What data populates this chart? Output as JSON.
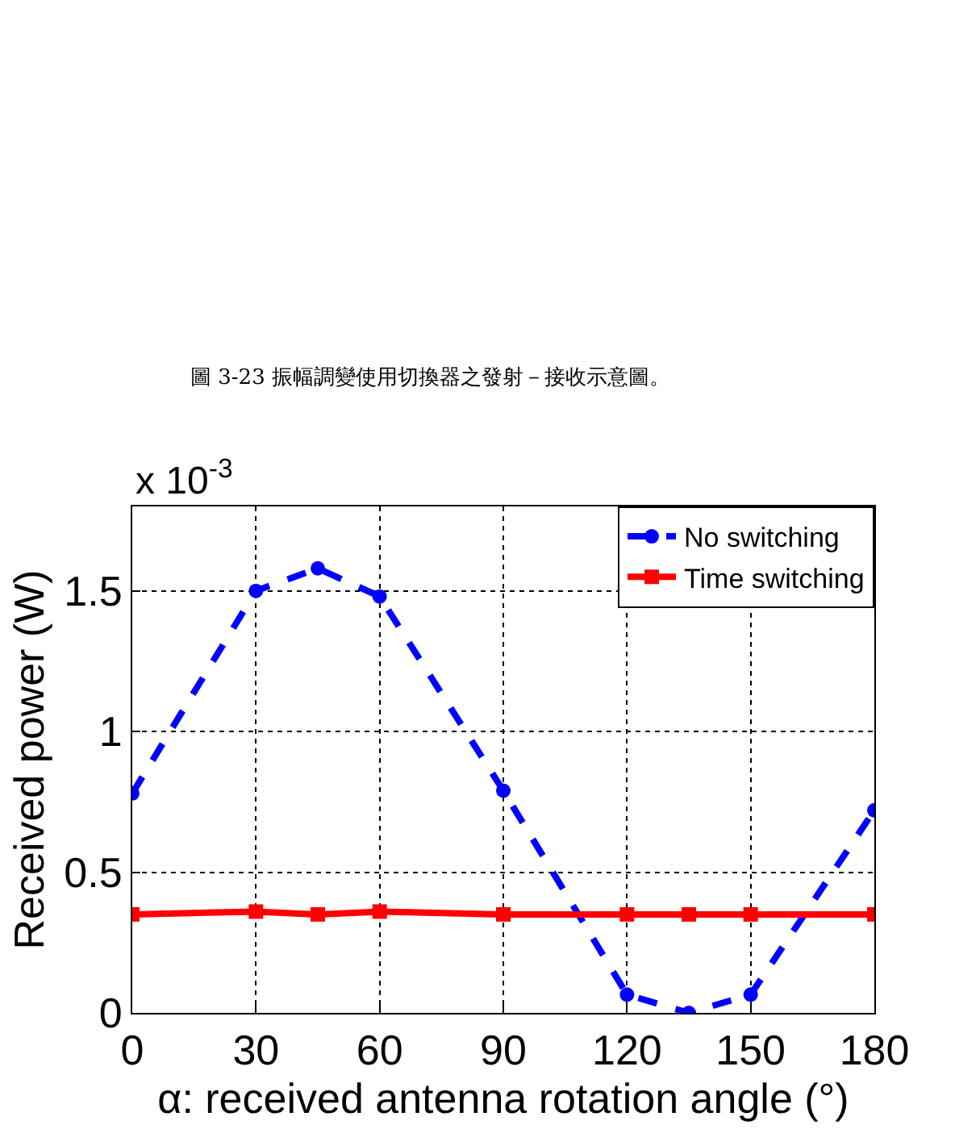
{
  "chart_data": {
    "type": "line",
    "x": [
      0,
      30,
      45,
      60,
      90,
      120,
      135,
      150,
      180
    ],
    "series": [
      {
        "name": "No switching",
        "color": "#0000ff",
        "marker": "circle",
        "line_style": "dashed",
        "values": [
          0.78,
          1.5,
          1.58,
          1.48,
          0.79,
          0.065,
          0,
          0.065,
          0.72
        ]
      },
      {
        "name": "Time switching",
        "color": "#ff0000",
        "marker": "square",
        "line_style": "solid",
        "values": [
          0.35,
          0.36,
          0.35,
          0.36,
          0.35,
          0.35,
          0.35,
          0.35,
          0.35
        ]
      }
    ],
    "xlabel": "α: received antenna rotation angle (°)",
    "ylabel": "Received power (W)",
    "xlim": [
      0,
      180
    ],
    "xticks": [
      0,
      30,
      60,
      90,
      120,
      150,
      180
    ],
    "ylim": [
      0,
      1.8
    ],
    "yticks": [
      0,
      0.5,
      1,
      1.5
    ],
    "grid": true,
    "legend": "top right",
    "annotations": [
      "x 10$^{-3}$",
      "圖 3-23 振幅調變使用切換器之發射－接收示意圖。"
    ]
  }
}
